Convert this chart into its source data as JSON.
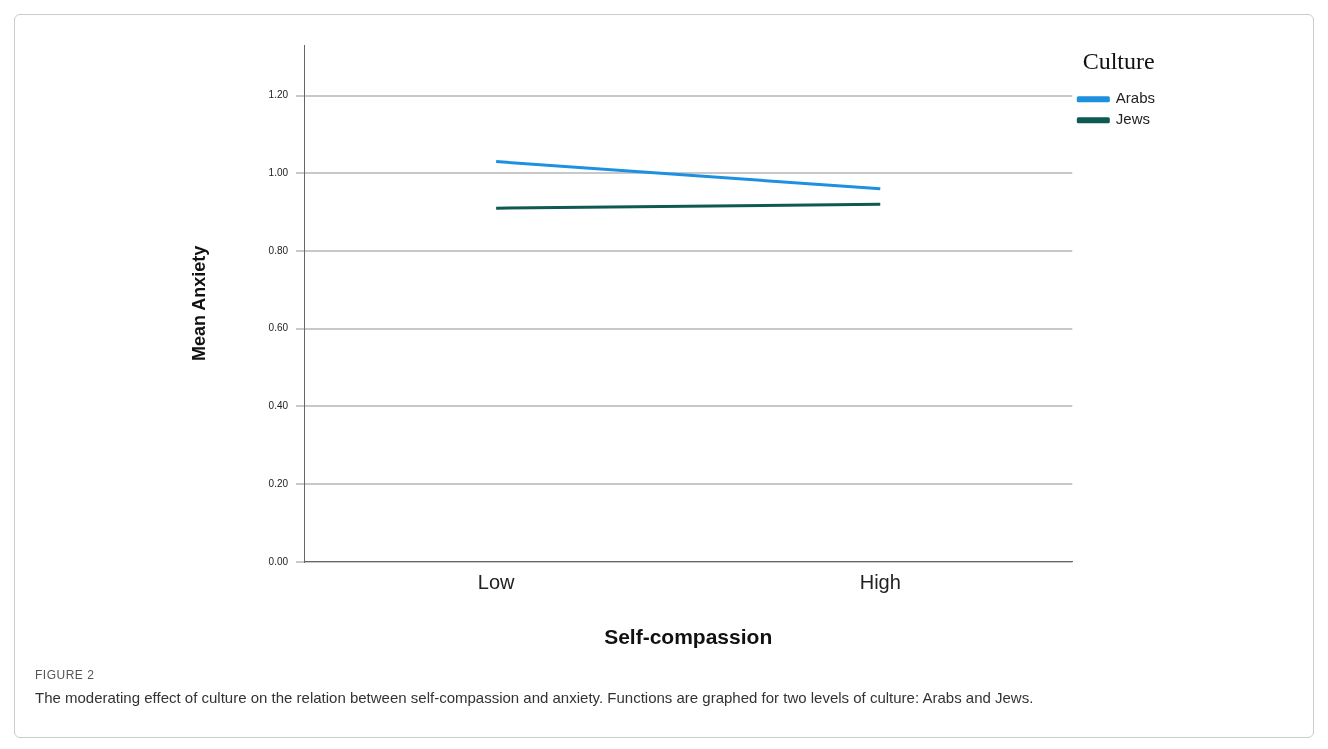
{
  "chart_data": {
    "type": "line",
    "xlabel": "Self-compassion",
    "ylabel": "Mean Anxiety",
    "legend_title": "Culture",
    "categories": [
      "Low",
      "High"
    ],
    "series": [
      {
        "name": "Arabs",
        "color": "#1e90e0",
        "values": [
          1.03,
          0.96
        ]
      },
      {
        "name": "Jews",
        "color": "#0e5a52",
        "values": [
          0.91,
          0.92
        ]
      }
    ],
    "ylim": [
      0,
      1.33
    ],
    "yticks": [
      {
        "value": 0,
        "label": "0.00"
      },
      {
        "value": 0.2,
        "label": "0.20"
      },
      {
        "value": 0.4,
        "label": "0.40"
      },
      {
        "value": 0.6,
        "label": "0.60"
      },
      {
        "value": 0.8,
        "label": "0.80"
      },
      {
        "value": 1,
        "label": "1.00"
      },
      {
        "value": 1.2,
        "label": "1.20"
      }
    ],
    "grid": "y",
    "legend": "top right",
    "marker": "none",
    "line_style": "solid",
    "annotations": [
      "FIGURE 2",
      "The moderating effect of culture on the relation between self-compassion and anxiety. Functions are graphed for two levels of culture: Arabs and Jews."
    ]
  }
}
